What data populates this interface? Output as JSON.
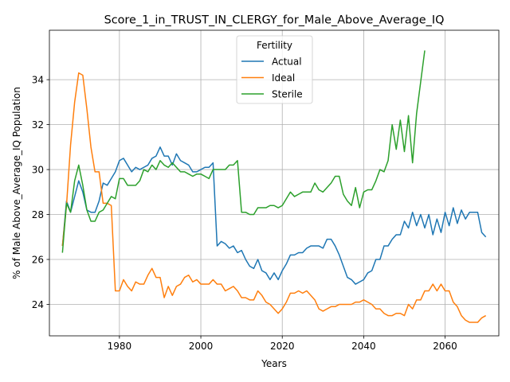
{
  "chart_data": {
    "type": "line",
    "title": "Score_1_in_TRUST_IN_CLERGY_for_Male_Above_Average_IQ",
    "xlabel": "Years",
    "ylabel": "% of Male Above_Average_IQ Population",
    "xlim": [
      1962.8,
      2073.2
    ],
    "ylim": [
      22.6,
      36.2
    ],
    "xticks": [
      1980,
      2000,
      2020,
      2040,
      2060
    ],
    "yticks": [
      24,
      26,
      28,
      30,
      32,
      34
    ],
    "grid": true,
    "legend": {
      "title": "Fertility",
      "placement": "top-center"
    },
    "colors": {
      "Actual": "#1f77b4",
      "Ideal": "#ff7f0e",
      "Sterile": "#2ca02c"
    },
    "x_start": 1966,
    "series": [
      {
        "name": "Actual",
        "values": [
          26.6,
          28.6,
          28.1,
          28.8,
          29.5,
          29.0,
          28.2,
          28.1,
          28.1,
          28.6,
          29.4,
          29.3,
          29.6,
          29.9,
          30.4,
          30.5,
          30.2,
          29.9,
          30.1,
          30.0,
          30.1,
          30.2,
          30.5,
          30.6,
          31.0,
          30.6,
          30.6,
          30.2,
          30.7,
          30.4,
          30.3,
          30.2,
          29.9,
          29.9,
          30.0,
          30.1,
          30.1,
          30.3,
          26.6,
          26.8,
          26.7,
          26.5,
          26.6,
          26.3,
          26.4,
          26.0,
          25.7,
          25.6,
          26.0,
          25.5,
          25.4,
          25.1,
          25.4,
          25.1,
          25.5,
          25.8,
          26.2,
          26.2,
          26.3,
          26.3,
          26.5,
          26.6,
          26.6,
          26.6,
          26.5,
          26.9,
          26.9,
          26.6,
          26.2,
          25.7,
          25.2,
          25.1,
          24.9,
          25.0,
          25.1,
          25.4,
          25.5,
          26.0,
          26.0,
          26.6,
          26.6,
          26.9,
          27.1,
          27.1,
          27.7,
          27.4,
          28.1,
          27.5,
          28.0,
          27.4,
          28.0,
          27.1,
          27.8,
          27.2,
          28.1,
          27.5,
          28.3,
          27.6,
          28.2,
          27.8,
          28.1,
          28.1,
          28.1,
          27.2,
          27.0
        ]
      },
      {
        "name": "Ideal",
        "values": [
          26.6,
          28.4,
          31.1,
          33.0,
          34.3,
          34.2,
          32.7,
          31.0,
          29.9,
          29.9,
          28.5,
          28.5,
          28.4,
          24.6,
          24.6,
          25.1,
          24.8,
          24.6,
          25.0,
          24.9,
          24.9,
          25.3,
          25.6,
          25.2,
          25.2,
          24.3,
          24.8,
          24.4,
          24.8,
          24.9,
          25.2,
          25.3,
          25.0,
          25.1,
          24.9,
          24.9,
          24.9,
          25.1,
          24.9,
          24.9,
          24.6,
          24.7,
          24.8,
          24.6,
          24.3,
          24.3,
          24.2,
          24.2,
          24.6,
          24.4,
          24.1,
          24.0,
          23.8,
          23.6,
          23.8,
          24.1,
          24.5,
          24.5,
          24.6,
          24.5,
          24.6,
          24.4,
          24.2,
          23.8,
          23.7,
          23.8,
          23.9,
          23.9,
          24.0,
          24.0,
          24.0,
          24.0,
          24.1,
          24.1,
          24.2,
          24.1,
          24.0,
          23.8,
          23.8,
          23.6,
          23.5,
          23.5,
          23.6,
          23.6,
          23.5,
          24.0,
          23.8,
          24.2,
          24.2,
          24.6,
          24.6,
          24.9,
          24.6,
          24.9,
          24.6,
          24.6,
          24.1,
          23.9,
          23.5,
          23.3,
          23.2,
          23.2,
          23.2,
          23.4,
          23.5
        ]
      },
      {
        "name": "Sterile",
        "values": [
          26.3,
          28.5,
          28.1,
          29.5,
          30.2,
          29.3,
          28.2,
          27.7,
          27.7,
          28.1,
          28.2,
          28.5,
          28.8,
          28.7,
          29.6,
          29.6,
          29.3,
          29.3,
          29.3,
          29.5,
          30.0,
          29.9,
          30.2,
          30.0,
          30.4,
          30.2,
          30.1,
          30.3,
          30.1,
          29.9,
          29.9,
          29.8,
          29.7,
          29.8,
          29.8,
          29.7,
          29.6,
          30.0,
          30.0,
          30.0,
          30.0,
          30.2,
          30.2,
          30.4,
          28.1,
          28.1,
          28.0,
          28.0,
          28.3,
          28.3,
          28.3,
          28.4,
          28.4,
          28.3,
          28.4,
          28.7,
          29.0,
          28.8,
          28.9,
          29.0,
          29.0,
          29.0,
          29.4,
          29.1,
          29.0,
          29.2,
          29.4,
          29.7,
          29.7,
          28.9,
          28.6,
          28.4,
          29.2,
          28.3,
          29.0,
          29.1,
          29.1,
          29.5,
          30.0,
          29.9,
          30.4,
          32.0,
          30.9,
          32.2,
          30.8,
          32.4,
          30.3,
          32.5,
          33.9,
          35.3
        ]
      }
    ]
  }
}
